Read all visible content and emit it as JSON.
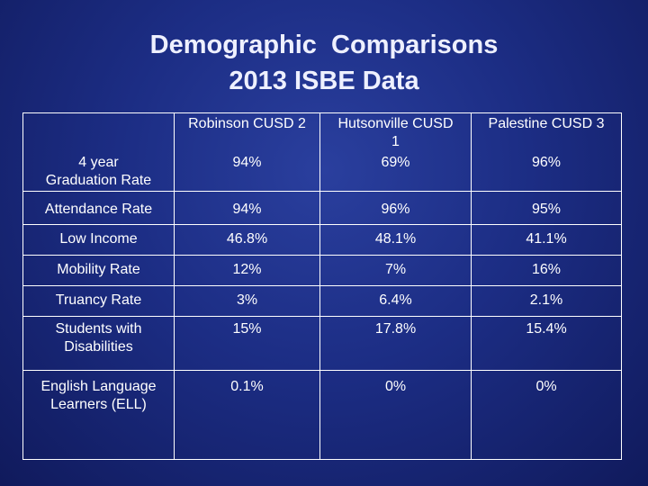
{
  "slide": {
    "title_line1": "Demographic  Comparisons",
    "title_line2": "2013 ISBE Data"
  },
  "table": {
    "columns": [
      "Robinson CUSD 2",
      "Hutsonville CUSD\n1",
      "Palestine CUSD 3"
    ],
    "rows": [
      {
        "label": "4 year\nGraduation Rate",
        "values": [
          "94%",
          "69%",
          "96%"
        ]
      },
      {
        "label": "Attendance Rate",
        "values": [
          "94%",
          "96%",
          "95%"
        ]
      },
      {
        "label": "Low Income",
        "values": [
          "46.8%",
          "48.1%",
          "41.1%"
        ]
      },
      {
        "label": "Mobility Rate",
        "values": [
          "12%",
          "7%",
          "16%"
        ]
      },
      {
        "label": "Truancy Rate",
        "values": [
          "3%",
          "6.4%",
          "2.1%"
        ]
      },
      {
        "label": "Students with\nDisabilities",
        "values": [
          "15%",
          "17.8%",
          "15.4%"
        ]
      },
      {
        "label": "English Language\nLearners (ELL)",
        "values": [
          "0.1%",
          "0%",
          "0%"
        ]
      }
    ]
  }
}
